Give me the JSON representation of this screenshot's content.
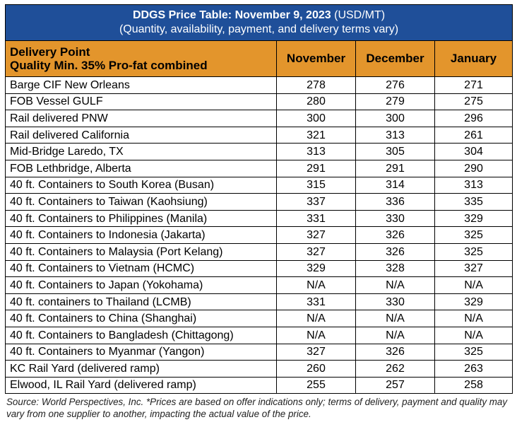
{
  "title": {
    "main": "DDGS Price Table: November 9, 2023",
    "unit": "(USD/MT)",
    "subtitle": "(Quantity, availability, payment, and delivery terms vary)"
  },
  "header": {
    "col1_line1": "Delivery Point",
    "col1_line2": "Quality Min. 35% Pro-fat combined",
    "months": [
      "November",
      "December",
      "January"
    ]
  },
  "colors": {
    "title_bg": "#1f4f99",
    "header_bg": "#e3952c"
  },
  "rows": [
    {
      "point": "Barge CIF New Orleans",
      "values": [
        "278",
        "276",
        "271"
      ]
    },
    {
      "point": "FOB Vessel GULF",
      "values": [
        "280",
        "279",
        "275"
      ]
    },
    {
      "point": "Rail delivered PNW",
      "values": [
        "300",
        "300",
        "296"
      ]
    },
    {
      "point": "Rail delivered California",
      "values": [
        "321",
        "313",
        "261"
      ]
    },
    {
      "point": "Mid-Bridge Laredo, TX",
      "values": [
        "313",
        "305",
        "304"
      ]
    },
    {
      "point": "FOB Lethbridge, Alberta",
      "values": [
        "291",
        "291",
        "290"
      ]
    },
    {
      "point": "40 ft. Containers to South Korea (Busan)",
      "values": [
        "315",
        "314",
        "313"
      ]
    },
    {
      "point": "40 ft. Containers to Taiwan (Kaohsiung)",
      "values": [
        "337",
        "336",
        "335"
      ]
    },
    {
      "point": "40 ft. Containers to Philippines (Manila)",
      "values": [
        "331",
        "330",
        "329"
      ]
    },
    {
      "point": "40 ft. Containers to Indonesia (Jakarta)",
      "values": [
        "327",
        "326",
        "325"
      ]
    },
    {
      "point": "40 ft. Containers to Malaysia (Port Kelang)",
      "values": [
        "327",
        "326",
        "325"
      ]
    },
    {
      "point": "40 ft. Containers to Vietnam (HCMC)",
      "values": [
        "329",
        "328",
        "327"
      ]
    },
    {
      "point": "40 ft. Containers to Japan (Yokohama)",
      "values": [
        "N/A",
        "N/A",
        "N/A"
      ]
    },
    {
      "point": "40 ft. containers to Thailand (LCMB)",
      "values": [
        "331",
        "330",
        "329"
      ]
    },
    {
      "point": "40 ft. Containers to China (Shanghai)",
      "values": [
        "N/A",
        "N/A",
        "N/A"
      ]
    },
    {
      "point": "40 ft. Containers to Bangladesh (Chittagong)",
      "values": [
        "N/A",
        "N/A",
        "N/A"
      ]
    },
    {
      "point": "40 ft. Containers to Myanmar (Yangon)",
      "values": [
        "327",
        "326",
        "325"
      ]
    },
    {
      "point": "KC Rail Yard (delivered ramp)",
      "values": [
        "260",
        "262",
        "263"
      ]
    },
    {
      "point": "Elwood, IL Rail Yard (delivered ramp)",
      "values": [
        "255",
        "257",
        "258"
      ]
    }
  ],
  "source": "Source: World Perspectives, Inc. *Prices are based on offer indications only; terms of delivery, payment and quality may vary from one supplier to another, impacting the actual value of the price."
}
